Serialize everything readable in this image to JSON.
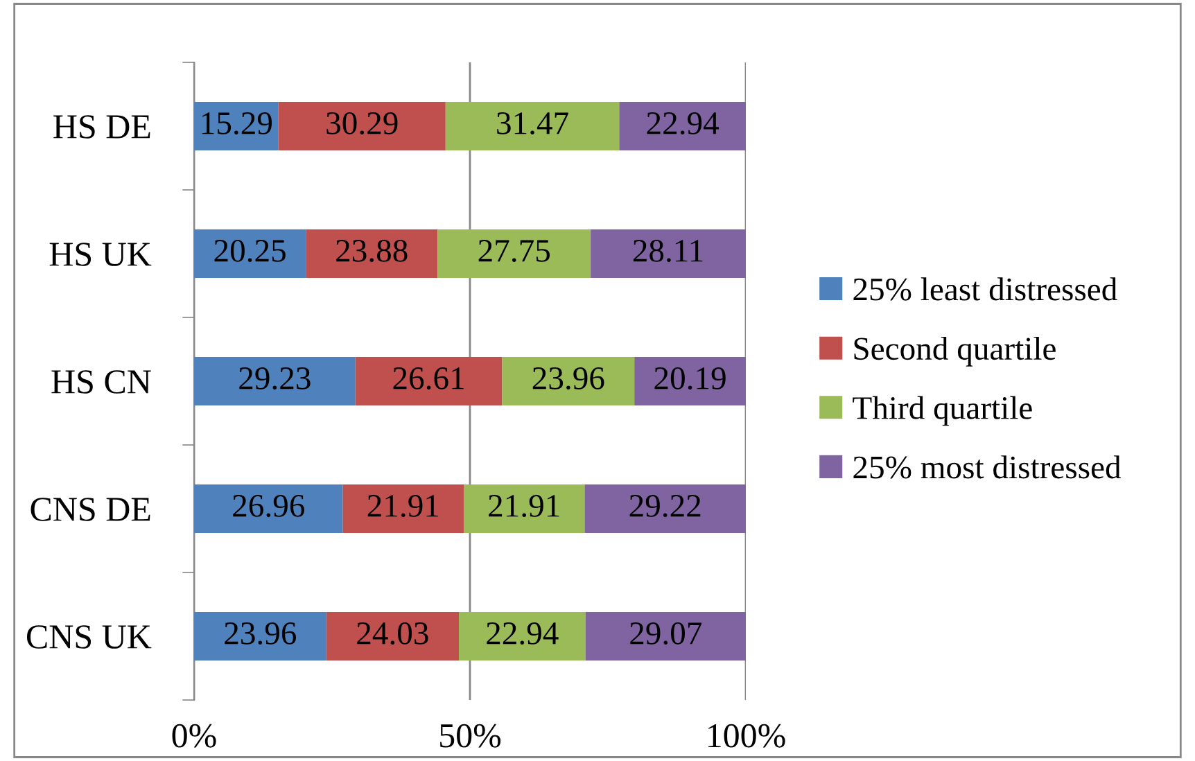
{
  "chart_data": {
    "type": "bar",
    "orientation": "horizontal",
    "stacked": true,
    "categories": [
      "HS DE",
      "HS UK",
      "HS CN",
      "CNS DE",
      "CNS UK"
    ],
    "series": [
      {
        "name": "25% least distressed",
        "color": "#4f81bd",
        "values": [
          15.29,
          20.25,
          29.23,
          26.96,
          23.96
        ]
      },
      {
        "name": "Second quartile",
        "color": "#c0504d",
        "values": [
          30.29,
          23.88,
          26.61,
          21.91,
          24.03
        ]
      },
      {
        "name": "Third quartile",
        "color": "#9bbb59",
        "values": [
          31.47,
          27.75,
          23.96,
          21.91,
          22.94
        ]
      },
      {
        "name": "25% most distressed",
        "color": "#8064a2",
        "values": [
          22.94,
          28.11,
          20.19,
          29.22,
          29.07
        ]
      }
    ],
    "xlim": [
      0,
      100
    ],
    "xticks": [
      {
        "value": 0,
        "label": "0%"
      },
      {
        "value": 50,
        "label": "50%"
      },
      {
        "value": 100,
        "label": "100%"
      }
    ],
    "data_labels": true,
    "grid": "x",
    "legend": "right"
  }
}
